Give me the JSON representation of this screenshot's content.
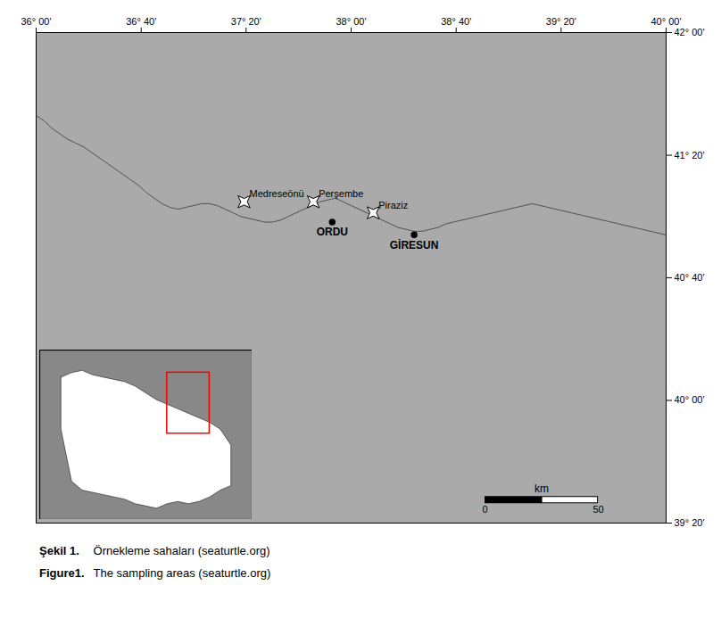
{
  "chart_data": [
    {
      "type": "map",
      "xlim": [
        36.0,
        40.0
      ],
      "ylim": [
        39.333,
        42.0
      ],
      "xticks": [
        {
          "value": 36.0,
          "label": "36° 00'"
        },
        {
          "value": 36.667,
          "label": "36° 40'"
        },
        {
          "value": 37.333,
          "label": "37° 20'"
        },
        {
          "value": 38.0,
          "label": "38° 00'"
        },
        {
          "value": 38.667,
          "label": "38° 40'"
        },
        {
          "value": 39.333,
          "label": "39° 20'"
        },
        {
          "value": 40.0,
          "label": "40° 00'"
        }
      ],
      "yticks": [
        {
          "value": 39.333,
          "label": "39° 20'"
        },
        {
          "value": 40.0,
          "label": "40° 00'"
        },
        {
          "value": 40.667,
          "label": "40° 40'"
        },
        {
          "value": 41.333,
          "label": "41° 20'"
        },
        {
          "value": 42.0,
          "label": "42° 00'"
        }
      ],
      "grid": false,
      "land_color": "#aaaaaa",
      "coastline": {
        "lon": [
          36.0,
          36.05,
          36.1,
          36.15,
          36.2,
          36.25,
          36.3,
          36.35,
          36.4,
          36.45,
          36.5,
          36.55,
          36.6,
          36.65,
          36.7,
          36.75,
          36.8,
          36.85,
          36.9,
          36.95,
          37.0,
          37.05,
          37.1,
          37.15,
          37.2,
          37.25,
          37.3,
          37.35,
          37.4,
          37.45,
          37.5,
          37.55,
          37.6,
          37.65,
          37.7,
          37.75,
          37.8,
          37.85,
          37.9,
          37.95,
          38.0,
          38.05,
          38.1,
          38.15,
          38.2,
          38.25,
          38.3,
          38.35,
          38.4,
          38.45,
          38.5,
          38.55,
          38.6,
          38.65,
          38.7,
          38.75,
          38.8,
          38.85,
          38.9,
          38.95,
          39.0,
          39.05,
          39.1,
          39.15,
          39.2,
          39.25,
          39.3,
          39.35,
          39.4,
          39.45,
          39.5,
          39.55,
          39.6,
          39.65,
          39.7,
          39.75,
          39.8,
          39.85,
          39.9,
          39.95,
          40.0
        ],
        "lat": [
          41.55,
          41.52,
          41.48,
          41.45,
          41.42,
          41.4,
          41.38,
          41.35,
          41.32,
          41.29,
          41.26,
          41.23,
          41.2,
          41.17,
          41.13,
          41.1,
          41.07,
          41.05,
          41.04,
          41.05,
          41.06,
          41.07,
          41.07,
          41.06,
          41.04,
          41.02,
          41.0,
          40.99,
          40.98,
          40.97,
          40.97,
          40.98,
          41.0,
          41.02,
          41.04,
          41.06,
          41.08,
          41.09,
          41.1,
          41.08,
          41.06,
          41.04,
          41.02,
          41.0,
          40.98,
          40.96,
          40.94,
          40.93,
          40.92,
          40.92,
          40.93,
          40.94,
          40.96,
          40.97,
          40.98,
          40.99,
          41.0,
          41.01,
          41.02,
          41.03,
          41.04,
          41.05,
          41.06,
          41.07,
          41.06,
          41.05,
          41.04,
          41.03,
          41.02,
          41.01,
          41.0,
          40.99,
          40.98,
          40.97,
          40.96,
          40.95,
          40.94,
          40.93,
          40.92,
          40.91,
          40.9
        ]
      },
      "cities": {
        "names": [
          "ORDU",
          "GİRESUN"
        ],
        "lon": [
          37.88,
          38.4
        ],
        "lat": [
          40.97,
          40.9
        ],
        "marker": "dot",
        "color": "black"
      },
      "sampling_sites": {
        "names": [
          "Medreseönü",
          "Perşembe",
          "Piraziz"
        ],
        "lon": [
          37.32,
          37.76,
          38.14
        ],
        "lat": [
          41.08,
          41.08,
          41.02
        ],
        "marker": "star4"
      },
      "scale_bar": {
        "x0": 38.85,
        "y": 39.46,
        "length": 0.72,
        "labels": [
          "0",
          "50"
        ],
        "unit": "km"
      },
      "captions": [
        {
          "label": "Şekil 1.",
          "text": "Örnekleme sahaları (seaturtle.org)"
        },
        {
          "label": "Figure1.",
          "text": "The sampling areas (seaturtle.org)"
        }
      ]
    },
    {
      "type": "map",
      "xlim": [
        24.0,
        44.0
      ],
      "ylim": [
        35.5,
        43.0
      ],
      "tick_labels": false,
      "grid": false,
      "background_color": "#888888",
      "land_color": "white",
      "outline": {
        "lon": [
          26,
          27,
          28,
          29,
          30,
          31,
          32,
          33,
          34,
          35,
          36,
          37,
          38,
          39,
          40,
          41,
          42,
          42,
          41,
          40,
          39,
          38,
          37,
          36,
          35,
          34,
          33,
          32,
          31,
          30,
          29,
          28,
          27,
          26,
          26
        ],
        "lat": [
          41.8,
          42.0,
          42.1,
          41.9,
          41.8,
          41.7,
          41.6,
          41.4,
          41.1,
          40.8,
          40.6,
          40.4,
          40.2,
          40.0,
          39.8,
          39.5,
          38.8,
          37.0,
          36.8,
          36.5,
          36.3,
          36.2,
          36.3,
          36.2,
          36.0,
          36.1,
          36.2,
          36.4,
          36.5,
          36.6,
          36.7,
          36.8,
          37.2,
          39.5,
          41.8
        ]
      },
      "rect": {
        "lon": [
          36.0,
          40.0
        ],
        "lat": [
          39.3,
          42.0
        ],
        "color": "red"
      }
    }
  ]
}
